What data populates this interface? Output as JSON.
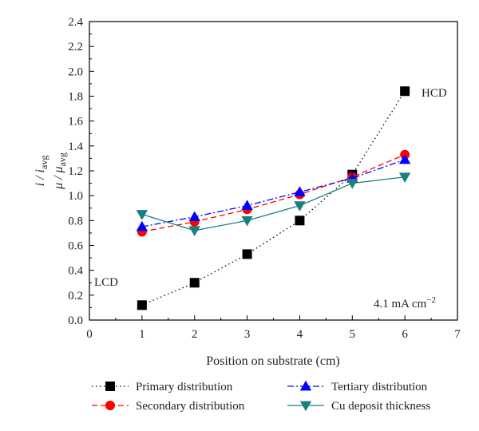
{
  "chart_data": {
    "type": "line",
    "xlabel": "Position on substrate (cm)",
    "ylabel_line1": {
      "main": "i / i",
      "sub": "avg"
    },
    "ylabel_line2": {
      "main": "μ / μ",
      "sub": "avg"
    },
    "xlim": [
      0,
      7
    ],
    "ylim": [
      0,
      2.4
    ],
    "xticks": [
      0,
      1,
      2,
      3,
      4,
      5,
      6,
      7
    ],
    "yticks": [
      0.0,
      0.2,
      0.4,
      0.6,
      0.8,
      1.0,
      1.2,
      1.4,
      1.6,
      1.8,
      2.0,
      2.2,
      2.4
    ],
    "x": [
      1,
      2,
      3,
      4,
      5,
      6
    ],
    "series": [
      {
        "name": "Primary distribution",
        "values": [
          0.12,
          0.3,
          0.53,
          0.8,
          1.17,
          1.84
        ],
        "color": "#000000",
        "marker": "square",
        "dash": "dotted"
      },
      {
        "name": "Secondary distribution",
        "values": [
          0.71,
          0.79,
          0.89,
          1.01,
          1.15,
          1.33
        ],
        "color": "#ff0000",
        "marker": "circle",
        "dash": "dashed"
      },
      {
        "name": "Tertiary distribution",
        "values": [
          0.75,
          0.83,
          0.92,
          1.03,
          1.14,
          1.29
        ],
        "color": "#0000ff",
        "marker": "triangle-up",
        "dash": "dashdot"
      },
      {
        "name": "Cu deposit thickness",
        "values": [
          0.85,
          0.72,
          0.8,
          0.92,
          1.1,
          1.15
        ],
        "color": "#1a7f7f",
        "marker": "triangle-down",
        "dash": "solid"
      }
    ],
    "annotations": {
      "hcd": "HCD",
      "lcd": "LCD",
      "current_density": {
        "main": "4.1 mA cm",
        "sup": "−2"
      }
    },
    "grid": false,
    "legend_position": "bottom"
  }
}
